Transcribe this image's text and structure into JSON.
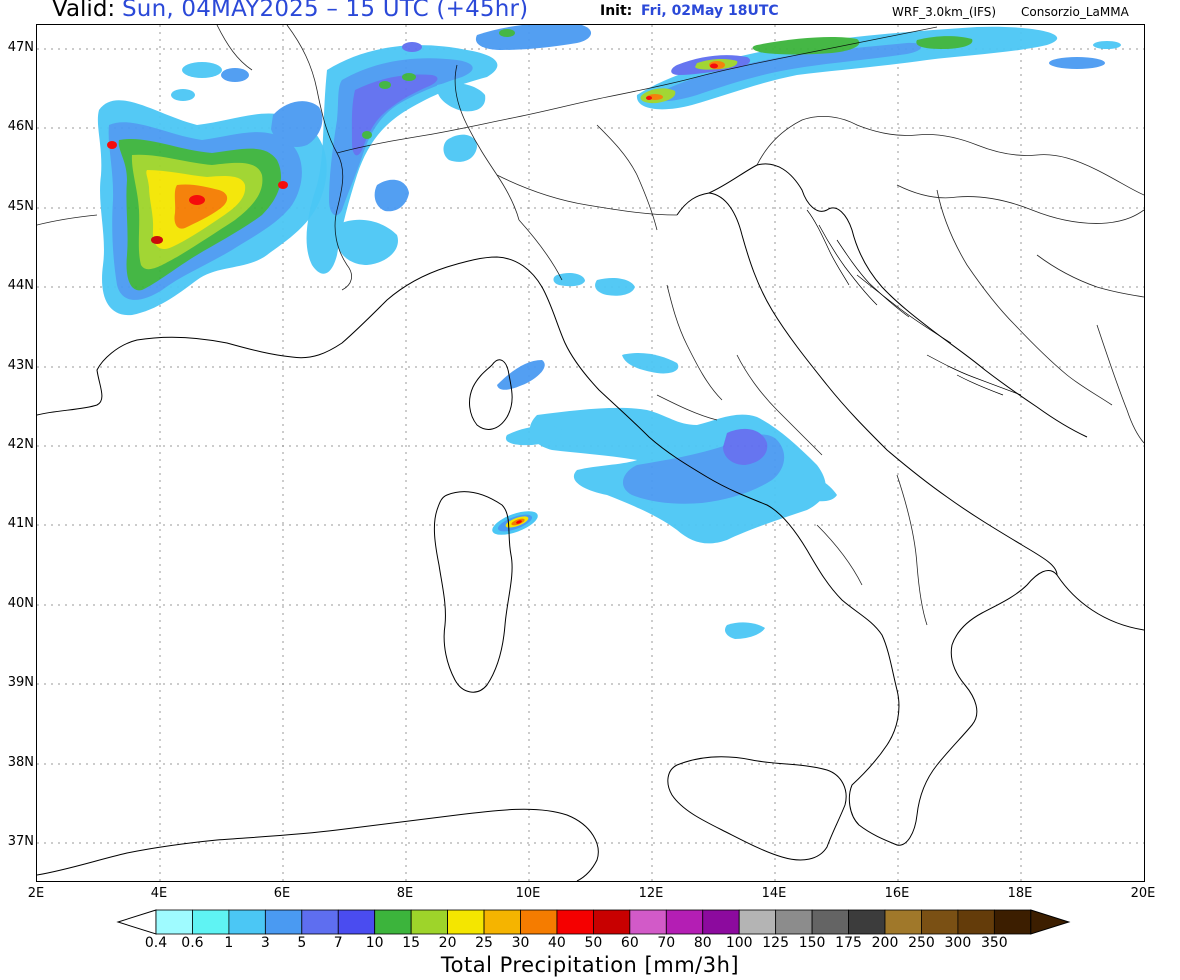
{
  "header": {
    "valid_label": "Valid:",
    "valid_value": "Sun, 04MAY2025 – 15 UTC (+45hr)",
    "init_label": "Init:",
    "init_value": "Fri, 02May 18UTC",
    "model": "WRF_3.0km_(IFS)",
    "organization": "Consorzio_LaMMA"
  },
  "axes": {
    "lat_labels": [
      "47N",
      "46N",
      "45N",
      "44N",
      "43N",
      "42N",
      "41N",
      "40N",
      "39N",
      "38N",
      "37N"
    ],
    "lon_labels": [
      "2E",
      "4E",
      "6E",
      "8E",
      "10E",
      "12E",
      "14E",
      "16E",
      "18E",
      "20E"
    ],
    "lat_range": [
      36.5,
      47.3
    ],
    "lon_range": [
      2,
      20
    ],
    "grid": "dotted"
  },
  "colorbar": {
    "title": "Total Precipitation [mm/3h]",
    "labels": [
      "0.4",
      "0.6",
      "1",
      "3",
      "5",
      "7",
      "10",
      "15",
      "20",
      "25",
      "30",
      "40",
      "50",
      "60",
      "70",
      "80",
      "100",
      "125",
      "150",
      "175",
      "200",
      "250",
      "300",
      "350"
    ],
    "colors": [
      "#9ffbff",
      "#5ff3f3",
      "#4bc7f5",
      "#4a9af2",
      "#5e6ef0",
      "#4a4cf0",
      "#3cb43c",
      "#9ed42a",
      "#f4e600",
      "#f5b400",
      "#f57c00",
      "#f50000",
      "#c80000",
      "#d25ac8",
      "#b41eb4",
      "#8c0a9e",
      "#b4b4b4",
      "#8c8c8c",
      "#646464",
      "#3c3c3c",
      "#a0782a",
      "#7a5014",
      "#643c0a",
      "#3c1e00"
    ],
    "left_arrow_color": "#ffffff",
    "right_arrow_color": "#3c1e00"
  },
  "precip_areas": [
    {
      "name": "western-alps",
      "lon": 4.6,
      "lat": 45.2,
      "level": "15-30"
    },
    {
      "name": "central-alps",
      "lon": 9.5,
      "lat": 46.6,
      "level": "5-10"
    },
    {
      "name": "eastern-alps",
      "lon": 13.5,
      "lat": 46.7,
      "level": "20-40"
    },
    {
      "name": "tyrrhenian-central-italy",
      "lon": 12.8,
      "lat": 41.6,
      "level": "1-5"
    },
    {
      "name": "sardinia-nw-cell",
      "lon": 9.9,
      "lat": 41.0,
      "level": "20-40"
    }
  ]
}
